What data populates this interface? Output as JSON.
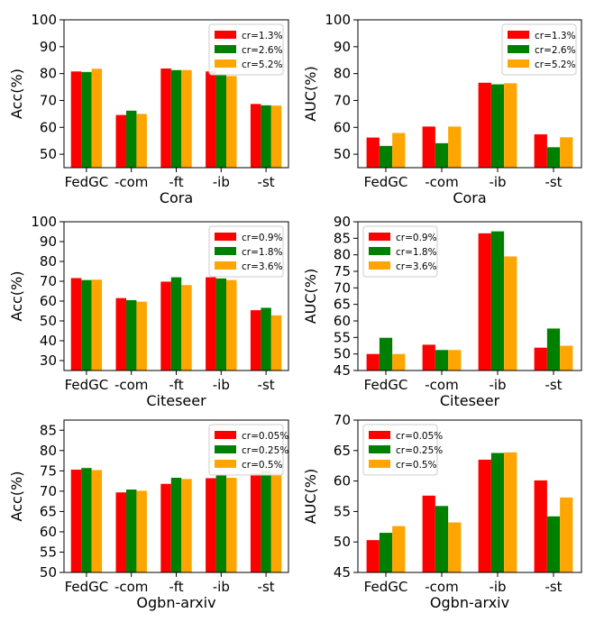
{
  "colors": {
    "s1": "#ff0000",
    "s2": "#008000",
    "s3": "#ffa500"
  },
  "chart_data": [
    {
      "type": "bar",
      "xlabel": "Cora",
      "ylabel": "Acc(%)",
      "categories": [
        "FedGC",
        "-com",
        "-ft",
        "-ib",
        "-st"
      ],
      "ylim": [
        45,
        100
      ],
      "yticks": [
        50,
        60,
        70,
        80,
        90,
        100
      ],
      "legend": "top-right",
      "series": [
        {
          "name": "cr=1.3%",
          "values": [
            80.8,
            64.6,
            81.9,
            80.8,
            68.7
          ]
        },
        {
          "name": "cr=2.6%",
          "values": [
            80.6,
            66.2,
            81.3,
            79.5,
            68.2
          ]
        },
        {
          "name": "cr=5.2%",
          "values": [
            81.8,
            65.0,
            81.3,
            79.1,
            68.1
          ]
        }
      ]
    },
    {
      "type": "bar",
      "xlabel": "Cora",
      "ylabel": "AUC(%)",
      "categories": [
        "FedGC",
        "-com",
        "-ib",
        "-st"
      ],
      "ylim": [
        45,
        100
      ],
      "yticks": [
        50,
        60,
        70,
        80,
        90,
        100
      ],
      "legend": "top-right",
      "series": [
        {
          "name": "cr=1.3%",
          "values": [
            56.2,
            60.3,
            76.6,
            57.4
          ]
        },
        {
          "name": "cr=2.6%",
          "values": [
            53.1,
            54.1,
            76.0,
            52.6
          ]
        },
        {
          "name": "cr=5.2%",
          "values": [
            57.9,
            60.3,
            76.4,
            56.3
          ]
        }
      ]
    },
    {
      "type": "bar",
      "xlabel": "Citeseer",
      "ylabel": "Acc(%)",
      "categories": [
        "FedGC",
        "-com",
        "-ft",
        "-ib",
        "-st"
      ],
      "ylim": [
        25,
        100
      ],
      "yticks": [
        30,
        40,
        50,
        60,
        70,
        80,
        90,
        100
      ],
      "legend": "top-right",
      "series": [
        {
          "name": "cr=0.9%",
          "values": [
            71.6,
            61.5,
            69.8,
            72.0,
            55.4
          ]
        },
        {
          "name": "cr=1.8%",
          "values": [
            70.6,
            60.5,
            72.0,
            71.4,
            56.6
          ]
        },
        {
          "name": "cr=3.6%",
          "values": [
            70.8,
            59.7,
            68.1,
            70.6,
            52.8
          ]
        }
      ]
    },
    {
      "type": "bar",
      "xlabel": "Citeseer",
      "ylabel": "AUC(%)",
      "categories": [
        "FedGC",
        "-com",
        "-ib",
        "-st"
      ],
      "ylim": [
        45,
        90
      ],
      "yticks": [
        45,
        50,
        55,
        60,
        65,
        70,
        75,
        80,
        85,
        90
      ],
      "legend": "top-left",
      "series": [
        {
          "name": "cr=0.9%",
          "values": [
            50.0,
            52.8,
            86.5,
            51.9
          ]
        },
        {
          "name": "cr=1.8%",
          "values": [
            54.9,
            51.2,
            87.1,
            57.7
          ]
        },
        {
          "name": "cr=3.6%",
          "values": [
            50.0,
            51.2,
            79.5,
            52.5
          ]
        }
      ]
    },
    {
      "type": "bar",
      "xlabel": "Ogbn-arxiv",
      "ylabel": "Acc(%)",
      "categories": [
        "FedGC",
        "-com",
        "-ft",
        "-ib",
        "-st"
      ],
      "ylim": [
        50,
        87.5
      ],
      "yticks": [
        50,
        55,
        60,
        65,
        70,
        75,
        80,
        85
      ],
      "legend": "top-right",
      "series": [
        {
          "name": "cr=0.05%",
          "values": [
            75.3,
            69.7,
            71.8,
            73.2,
            74.4
          ]
        },
        {
          "name": "cr=0.25%",
          "values": [
            75.7,
            70.4,
            73.3,
            74.1,
            75.0
          ]
        },
        {
          "name": "cr=0.5%",
          "values": [
            75.2,
            70.1,
            73.0,
            73.3,
            74.6
          ]
        }
      ]
    },
    {
      "type": "bar",
      "xlabel": "Ogbn-arxiv",
      "ylabel": "AUC(%)",
      "categories": [
        "FedGC",
        "-com",
        "-ib",
        "-st"
      ],
      "ylim": [
        45,
        70
      ],
      "yticks": [
        45,
        50,
        55,
        60,
        65,
        70
      ],
      "legend": "top-left",
      "series": [
        {
          "name": "cr=0.05%",
          "values": [
            50.3,
            57.6,
            63.5,
            60.1
          ]
        },
        {
          "name": "cr=0.25%",
          "values": [
            51.5,
            55.9,
            64.6,
            54.2
          ]
        },
        {
          "name": "cr=0.5%",
          "values": [
            52.6,
            53.2,
            64.7,
            57.3
          ]
        }
      ]
    }
  ]
}
